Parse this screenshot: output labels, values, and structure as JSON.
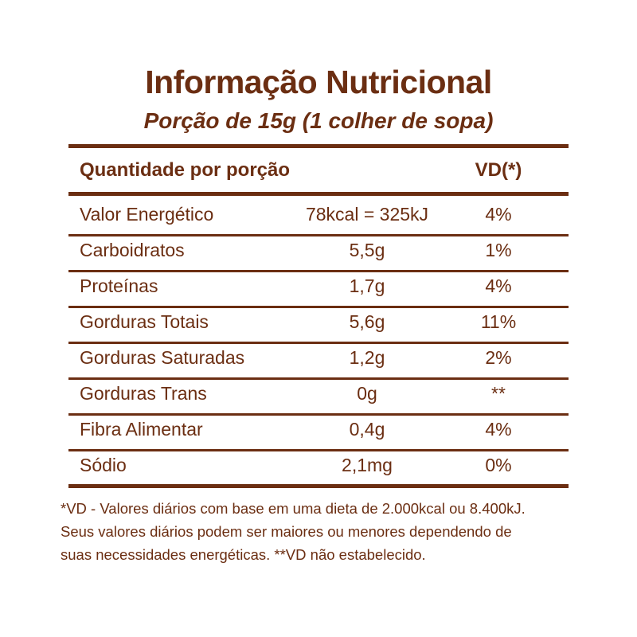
{
  "title": "Informação Nutricional",
  "subtitle": "Porção de 15g (1 colher de sopa)",
  "header": {
    "quantity": "Quantidade por porção",
    "vd": "VD(*)"
  },
  "rows": [
    {
      "name": "Valor Energético",
      "value": "78kcal = 325kJ",
      "vd": "4%"
    },
    {
      "name": "Carboidratos",
      "value": "5,5g",
      "vd": "1%"
    },
    {
      "name": "Proteínas",
      "value": "1,7g",
      "vd": "4%"
    },
    {
      "name": "Gorduras Totais",
      "value": "5,6g",
      "vd": "11%"
    },
    {
      "name": "Gorduras Saturadas",
      "value": "1,2g",
      "vd": "2%"
    },
    {
      "name": "Gorduras Trans",
      "value": "0g",
      "vd": "**"
    },
    {
      "name": "Fibra Alimentar",
      "value": "0,4g",
      "vd": "4%"
    },
    {
      "name": "Sódio",
      "value": "2,1mg",
      "vd": "0%"
    }
  ],
  "footnote": [
    "*VD - Valores diários com base em uma dieta de 2.000kcal ou 8.400kJ.",
    "Seus valores diários podem ser maiores ou menores dependendo de",
    "suas necessidades energéticas. **VD não estabelecido."
  ],
  "colors": {
    "brown": "#6b2e12"
  }
}
